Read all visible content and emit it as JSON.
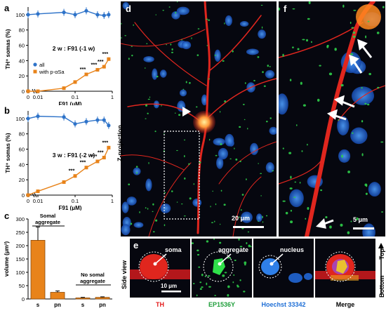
{
  "panels": {
    "a": {
      "label": "a",
      "condition": "2 w : F91 (-1 w)",
      "legend": {
        "all": "all",
        "with": "with p-αSa"
      },
      "ylabel": "TH⁺ somas (%)",
      "xlabel": "F91 (μM)",
      "yticks": [
        "0",
        "20",
        "40",
        "60",
        "80",
        "100"
      ],
      "xticks": [
        "0",
        "0.01",
        "0.1",
        "1"
      ],
      "sig": [
        "***",
        "***",
        "***",
        "***"
      ]
    },
    "b": {
      "label": "b",
      "condition": "3 w : F91 (-2 w)",
      "ylabel": "TH⁺ somas (%)",
      "xlabel": "F91 (μM)",
      "yticks": [
        "0",
        "20",
        "40",
        "60",
        "80",
        "100"
      ],
      "xticks": [
        "0",
        "0.01",
        "0.1",
        "1"
      ],
      "sig": [
        "***",
        "***",
        "***",
        "***",
        "***"
      ]
    },
    "c": {
      "label": "c",
      "ylabel": "volume (μm³)",
      "yticks": [
        "0",
        "50",
        "100",
        "150",
        "200",
        "250",
        "300"
      ],
      "group1": "Somal aggregate",
      "group2": "No somal aggregate",
      "bar_labels": [
        "s",
        "pn",
        "s",
        "pn"
      ]
    },
    "d": {
      "label": "d",
      "side_label": "Z-projection",
      "scale": "20 μm"
    },
    "f": {
      "label": "f",
      "scale": "5 μm"
    },
    "e": {
      "label": "e",
      "side_label": "Side view",
      "axis_top": "Top",
      "axis_bottom": "Bottom",
      "scale": "10 μm",
      "annotations": [
        "soma",
        "aggregate",
        "nucleus"
      ],
      "channels": [
        "TH",
        "EP1536Y",
        "Hoechst 33342",
        "Merge"
      ]
    }
  },
  "colors": {
    "orange": "#e8831a",
    "blue": "#2e73c9",
    "th_red": "#e31b1b",
    "ep_green": "#1e9e3a",
    "hoechst_blue": "#1f6fd6"
  },
  "chart_data": [
    {
      "panel": "a",
      "type": "line",
      "x": [
        0,
        0.01,
        0.05,
        0.1,
        0.2,
        0.4,
        0.6,
        0.8
      ],
      "series": [
        {
          "name": "all",
          "values": [
            100,
            101,
            103,
            100,
            105,
            100,
            99,
            100
          ]
        },
        {
          "name": "with p-αSa",
          "values": [
            0,
            0,
            4,
            12,
            22,
            28,
            32,
            42
          ]
        }
      ],
      "ylim": [
        0,
        110
      ],
      "xscale": "log-like"
    },
    {
      "panel": "b",
      "type": "line",
      "x": [
        0,
        0.01,
        0.05,
        0.1,
        0.2,
        0.4,
        0.6,
        0.8
      ],
      "series": [
        {
          "name": "all",
          "values": [
            100,
            103,
            102,
            93,
            96,
            98,
            98,
            91
          ]
        },
        {
          "name": "with p-αSa",
          "values": [
            0,
            5,
            17,
            25,
            36,
            44,
            49,
            62
          ]
        }
      ],
      "ylim": [
        0,
        110
      ],
      "xscale": "log-like"
    },
    {
      "panel": "c",
      "type": "bar",
      "categories": [
        "s",
        "pn",
        "s",
        "pn"
      ],
      "values": [
        220,
        25,
        4,
        6
      ],
      "errors": [
        50,
        5,
        2,
        2
      ],
      "ylim": [
        0,
        300
      ]
    }
  ]
}
